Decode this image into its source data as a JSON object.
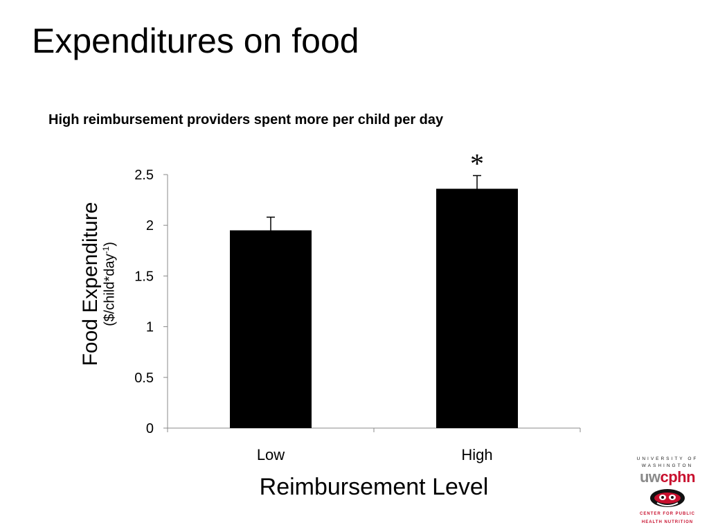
{
  "slide": {
    "title": "Expenditures on food"
  },
  "chart_data": {
    "type": "bar",
    "title": "High reimbursement providers spent more per child per day",
    "ylabel": "Food Expenditure",
    "ylabel_unit_prefix": "($/child*day",
    "ylabel_unit_sup": "-1",
    "ylabel_unit_suffix": ")",
    "xlabel": "Reimbursement Level",
    "categories": [
      "Low",
      "High"
    ],
    "values": [
      1.95,
      2.36
    ],
    "error_upper": [
      2.08,
      2.49
    ],
    "significance": [
      "",
      "*"
    ],
    "ylim": [
      0,
      2.5
    ],
    "yticks": [
      "0",
      "0.5",
      "1",
      "1.5",
      "2",
      "2.5"
    ],
    "ytick_values": [
      0,
      0.5,
      1,
      1.5,
      2,
      2.5
    ],
    "grid": false,
    "bar_color": "#000000"
  },
  "logo": {
    "line1": "UNIVERSITY OF",
    "line2": "WASHINGTON",
    "mark_uw": "uw",
    "mark_cphn": "cphn",
    "bottom1": "CENTER FOR PUBLIC",
    "bottom2": "HEALTH NUTRITION",
    "accent_color": "#c8102e"
  }
}
